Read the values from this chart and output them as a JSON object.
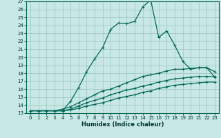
{
  "xlabel": "Humidex (Indice chaleur)",
  "xlim": [
    -0.5,
    23.5
  ],
  "ylim": [
    13,
    27
  ],
  "xticks": [
    0,
    1,
    2,
    3,
    4,
    5,
    6,
    7,
    8,
    9,
    10,
    11,
    12,
    13,
    14,
    15,
    16,
    17,
    18,
    19,
    20,
    21,
    22,
    23
  ],
  "yticks": [
    13,
    14,
    15,
    16,
    17,
    18,
    19,
    20,
    21,
    22,
    23,
    24,
    25,
    26,
    27
  ],
  "bg_color": "#c8e8e5",
  "grid_color": "#a0c8c5",
  "line_color": "#006655",
  "series": [
    {
      "x": [
        0,
        1,
        2,
        3,
        4,
        5,
        6,
        7,
        8,
        9,
        10,
        11,
        12,
        13,
        14,
        15,
        16,
        17,
        18,
        19,
        20,
        21,
        22,
        23
      ],
      "y": [
        13.3,
        13.3,
        13.3,
        13.3,
        13.3,
        14.5,
        16.2,
        18.2,
        19.8,
        21.2,
        23.5,
        24.3,
        24.2,
        24.5,
        26.3,
        27.2,
        22.5,
        23.3,
        21.5,
        19.5,
        18.5,
        18.7,
        18.7,
        17.5
      ]
    },
    {
      "x": [
        0,
        1,
        2,
        3,
        4,
        5,
        6,
        7,
        8,
        9,
        10,
        11,
        12,
        13,
        14,
        15,
        16,
        17,
        18,
        19,
        20,
        21,
        22,
        23
      ],
      "y": [
        13.3,
        13.3,
        13.3,
        13.3,
        13.5,
        13.8,
        14.3,
        14.8,
        15.3,
        15.8,
        16.0,
        16.4,
        16.8,
        17.2,
        17.6,
        17.8,
        18.0,
        18.3,
        18.5,
        18.5,
        18.6,
        18.7,
        18.7,
        18.2
      ]
    },
    {
      "x": [
        0,
        1,
        2,
        3,
        4,
        5,
        6,
        7,
        8,
        9,
        10,
        11,
        12,
        13,
        14,
        15,
        16,
        17,
        18,
        19,
        20,
        21,
        22,
        23
      ],
      "y": [
        13.3,
        13.3,
        13.3,
        13.3,
        13.3,
        13.5,
        13.9,
        14.3,
        14.6,
        14.9,
        15.3,
        15.6,
        15.9,
        16.1,
        16.4,
        16.6,
        16.9,
        17.1,
        17.3,
        17.4,
        17.5,
        17.6,
        17.6,
        17.6
      ]
    },
    {
      "x": [
        0,
        1,
        2,
        3,
        4,
        5,
        6,
        7,
        8,
        9,
        10,
        11,
        12,
        13,
        14,
        15,
        16,
        17,
        18,
        19,
        20,
        21,
        22,
        23
      ],
      "y": [
        13.3,
        13.3,
        13.3,
        13.3,
        13.3,
        13.4,
        13.6,
        13.9,
        14.1,
        14.3,
        14.6,
        14.9,
        15.1,
        15.3,
        15.6,
        15.8,
        16.1,
        16.3,
        16.5,
        16.6,
        16.7,
        16.8,
        16.9,
        16.9
      ]
    }
  ]
}
